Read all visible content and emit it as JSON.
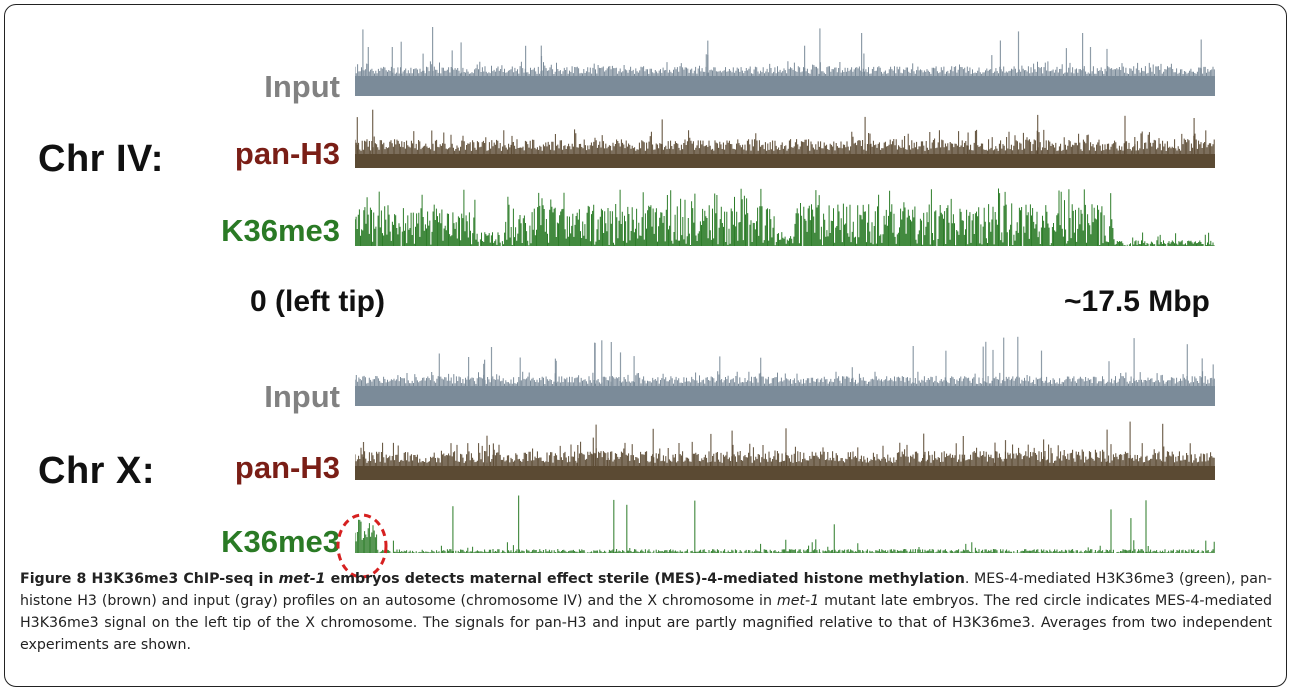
{
  "panels": [
    {
      "chromosome": "Chr IV:",
      "tracks": [
        {
          "label": "Input",
          "color": "#7b8b99",
          "label_color": "#818181"
        },
        {
          "label": "pan-H3",
          "color": "#5b4a33",
          "label_color": "#7a1e16"
        },
        {
          "label": "K36me3",
          "color": "#2e7d2a",
          "label_color": "#2a7a25"
        }
      ]
    },
    {
      "chromosome": "Chr X:",
      "tracks": [
        {
          "label": "Input",
          "color": "#7b8b99",
          "label_color": "#818181"
        },
        {
          "label": "pan-H3",
          "color": "#5b4a33",
          "label_color": "#7a1e16"
        },
        {
          "label": "K36me3",
          "color": "#2e7d2a",
          "label_color": "#2a7a25"
        }
      ]
    }
  ],
  "axis": {
    "start": "0 (left tip)",
    "end": "~17.5 Mbp"
  },
  "highlight_color": "#d62020",
  "caption": {
    "title_prefix": "Figure 8 H3K36me3 ChIP-seq in ",
    "title_italic": "met-1",
    "title_suffix": " embryos detects maternal effect sterile (MES)-4-mediated histone methylation",
    "body_1": ". MES-4-mediated H3K36me3 (green), pan-histone H3 (brown) and input (gray) profiles on an autosome (chromosome IV) and the X chromosome in ",
    "body_italic": "met-1",
    "body_2": " mutant late embryos. The red circle indicates MES-4-mediated H3K36me3 signal on the left tip of the X chromosome. The signals for pan-H3 and input are partly magnified relative to that of H3K36me3. Averages from two independent experiments are shown."
  }
}
